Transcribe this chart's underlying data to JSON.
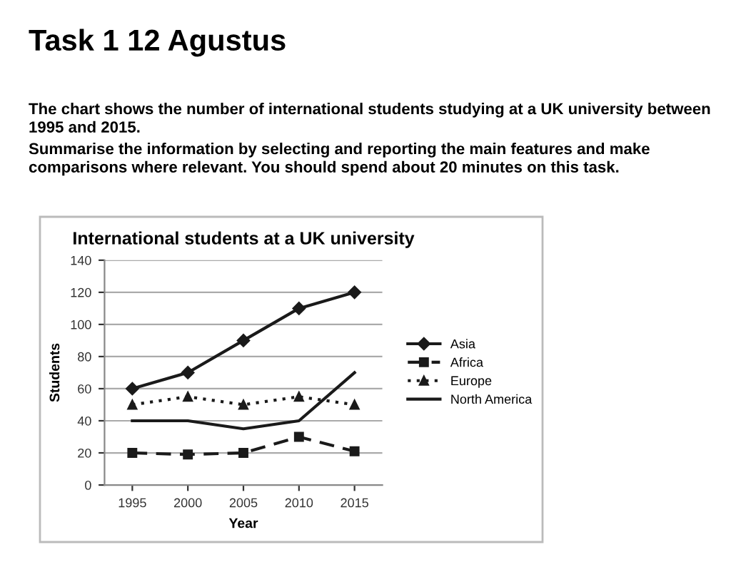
{
  "chart_data": {
    "type": "line",
    "title": "International students at a UK university",
    "xlabel": "Year",
    "ylabel": "Students",
    "annotations": [
      "Task 1 12 Agustus",
      "The chart shows the number of international students studying at a UK university between 1995 and 2015.",
      "Summarise the information by selecting and reporting the main features and make comparisons where relevant. You should spend about 20 minutes on this task."
    ],
    "categories": [
      "1995",
      "2000",
      "2005",
      "2010",
      "2015"
    ],
    "series": [
      {
        "name": "Asia",
        "color": "#1a1a1a",
        "marker": "diamond",
        "line_style": "solid",
        "values": [
          60,
          70,
          90,
          110,
          120
        ]
      },
      {
        "name": "Africa",
        "color": "#1a1a1a",
        "marker": "square",
        "line_style": "dashed",
        "values": [
          20,
          19,
          20,
          30,
          21
        ]
      },
      {
        "name": "Europe",
        "color": "#1a1a1a",
        "marker": "triangle",
        "line_style": "dotted",
        "values": [
          50,
          55,
          50,
          55,
          50
        ]
      },
      {
        "name": "North America",
        "color": "#1a1a1a",
        "marker": "none",
        "line_style": "solid",
        "values": [
          40,
          40,
          35,
          40,
          70
        ]
      }
    ],
    "ylim": [
      0,
      140
    ],
    "yticks": [
      0,
      20,
      40,
      60,
      80,
      100,
      120,
      140
    ],
    "grid": "y",
    "legend": "right"
  }
}
